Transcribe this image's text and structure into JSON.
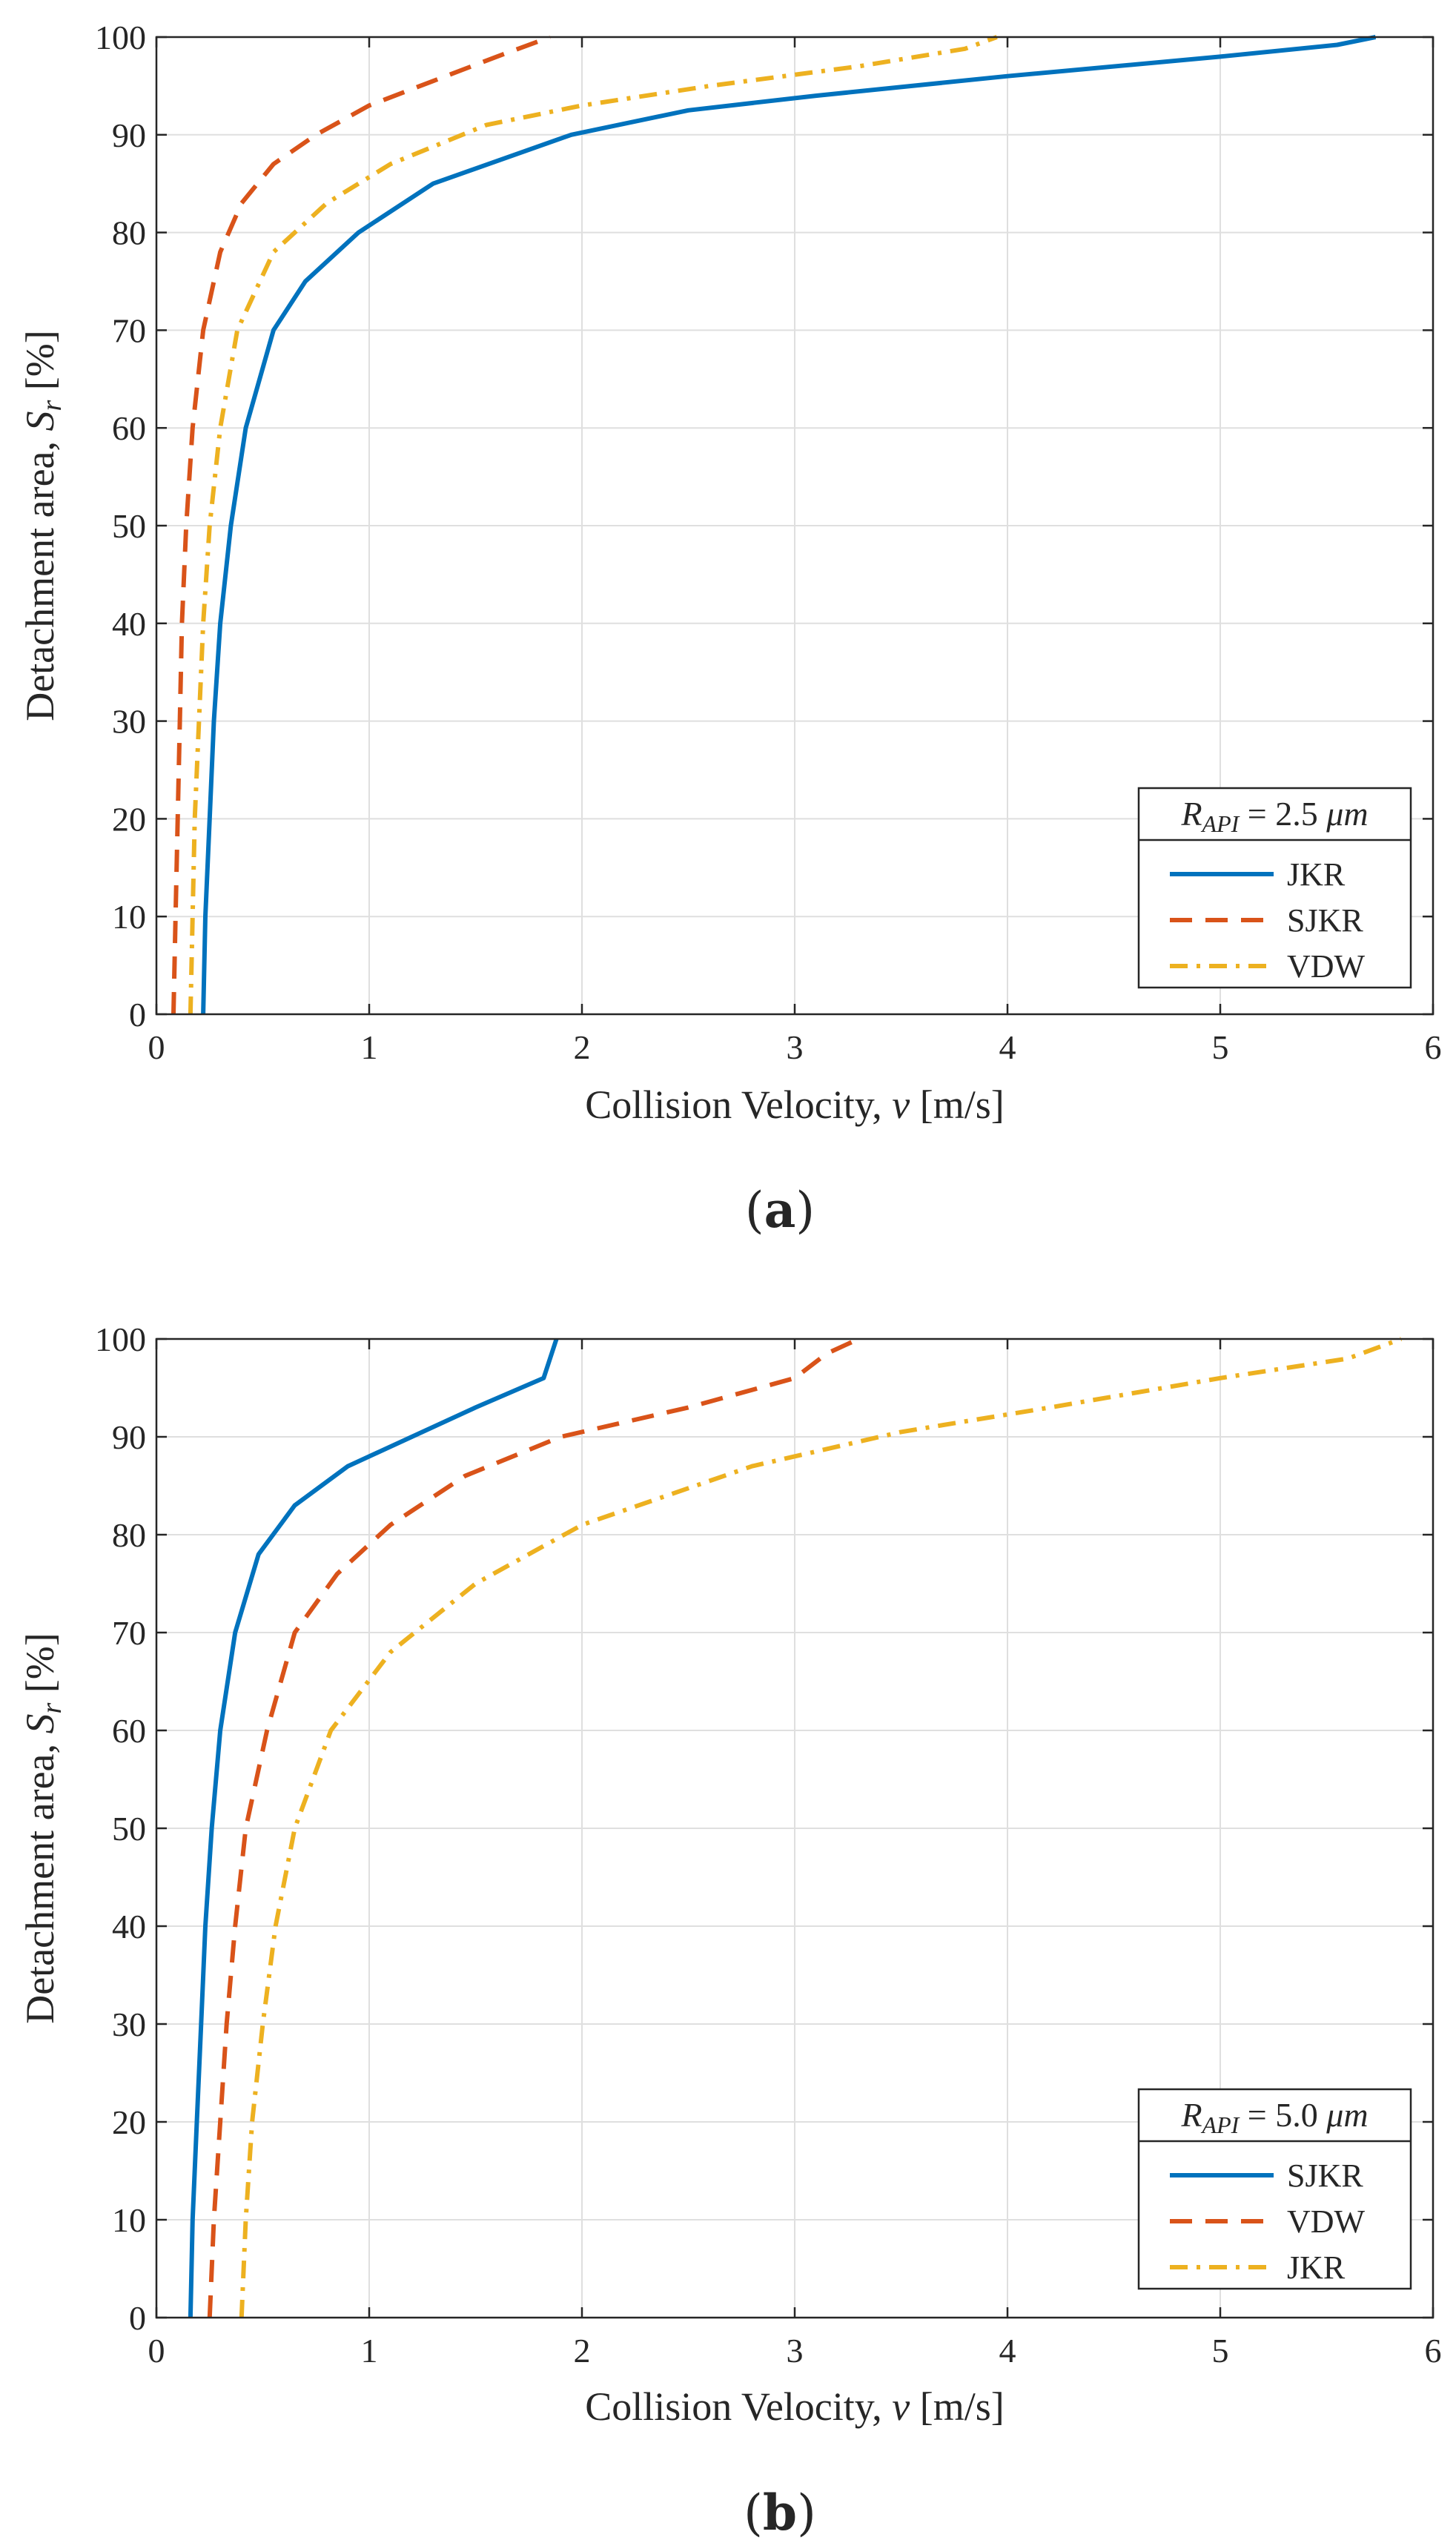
{
  "chart_data": [
    {
      "type": "line",
      "panel_label": "a",
      "xlabel_text": "Collision Velocity, ",
      "xlabel_symbol": "v",
      "xlabel_unit": " [m/s]",
      "ylabel_text": "Detachment area, ",
      "ylabel_symbol": "S",
      "ylabel_subscript": "r",
      "ylabel_unit": " [%]",
      "xlim": [
        0,
        6
      ],
      "ylim": [
        0,
        100
      ],
      "xticks": [
        0,
        1,
        2,
        3,
        4,
        5,
        6
      ],
      "yticks": [
        0,
        10,
        20,
        30,
        40,
        50,
        60,
        70,
        80,
        90,
        100
      ],
      "grid": true,
      "legend_placement": "bottom-right",
      "legend_title_symbol": "R",
      "legend_title_subscript": "API",
      "legend_title_value": " = 2.5 ",
      "legend_title_unit": "μm",
      "series": [
        {
          "name": "JKR",
          "color": "#0072BD",
          "dash": "solid",
          "points": [
            [
              0.22,
              0
            ],
            [
              0.23,
              10
            ],
            [
              0.25,
              20
            ],
            [
              0.27,
              30
            ],
            [
              0.3,
              40
            ],
            [
              0.35,
              50
            ],
            [
              0.42,
              60
            ],
            [
              0.55,
              70
            ],
            [
              0.7,
              75
            ],
            [
              0.95,
              80
            ],
            [
              1.3,
              85
            ],
            [
              1.95,
              90
            ],
            [
              2.5,
              92.5
            ],
            [
              3.1,
              94
            ],
            [
              4.0,
              96
            ],
            [
              5.0,
              98
            ],
            [
              5.55,
              99.2
            ],
            [
              5.73,
              100
            ]
          ]
        },
        {
          "name": "SJKR",
          "color": "#D95319",
          "dash": "dashed",
          "points": [
            [
              0.08,
              0
            ],
            [
              0.09,
              10
            ],
            [
              0.1,
              20
            ],
            [
              0.11,
              30
            ],
            [
              0.12,
              40
            ],
            [
              0.14,
              50
            ],
            [
              0.17,
              60
            ],
            [
              0.22,
              70
            ],
            [
              0.3,
              78
            ],
            [
              0.4,
              83
            ],
            [
              0.55,
              87
            ],
            [
              0.75,
              90
            ],
            [
              1.0,
              93
            ],
            [
              1.3,
              95.5
            ],
            [
              1.6,
              98
            ],
            [
              1.85,
              100
            ]
          ]
        },
        {
          "name": "VDW",
          "color": "#EDB120",
          "dash": "dashdot",
          "points": [
            [
              0.16,
              0
            ],
            [
              0.17,
              10
            ],
            [
              0.18,
              20
            ],
            [
              0.2,
              30
            ],
            [
              0.22,
              40
            ],
            [
              0.25,
              50
            ],
            [
              0.3,
              60
            ],
            [
              0.38,
              70
            ],
            [
              0.55,
              78
            ],
            [
              0.8,
              83
            ],
            [
              1.1,
              87
            ],
            [
              1.55,
              91
            ],
            [
              2.0,
              93
            ],
            [
              2.6,
              95
            ],
            [
              3.3,
              97
            ],
            [
              3.8,
              98.8
            ],
            [
              3.95,
              100
            ]
          ]
        }
      ]
    },
    {
      "type": "line",
      "panel_label": "b",
      "xlabel_text": "Collision Velocity, ",
      "xlabel_symbol": "v",
      "xlabel_unit": " [m/s]",
      "ylabel_text": "Detachment area, ",
      "ylabel_symbol": "S",
      "ylabel_subscript": "r",
      "ylabel_unit": " [%]",
      "xlim": [
        0,
        6
      ],
      "ylim": [
        0,
        100
      ],
      "xticks": [
        0,
        1,
        2,
        3,
        4,
        5,
        6
      ],
      "yticks": [
        0,
        10,
        20,
        30,
        40,
        50,
        60,
        70,
        80,
        90,
        100
      ],
      "grid": true,
      "legend_placement": "bottom-right",
      "legend_title_symbol": "R",
      "legend_title_subscript": "API",
      "legend_title_value": " = 5.0 ",
      "legend_title_unit": "μm",
      "series": [
        {
          "name": "SJKR",
          "color": "#0072BD",
          "dash": "solid",
          "points": [
            [
              0.16,
              0
            ],
            [
              0.17,
              10
            ],
            [
              0.19,
              20
            ],
            [
              0.21,
              30
            ],
            [
              0.23,
              40
            ],
            [
              0.26,
              50
            ],
            [
              0.3,
              60
            ],
            [
              0.37,
              70
            ],
            [
              0.48,
              78
            ],
            [
              0.65,
              83
            ],
            [
              0.9,
              87
            ],
            [
              1.2,
              90
            ],
            [
              1.5,
              93
            ],
            [
              1.82,
              96
            ],
            [
              1.88,
              100
            ]
          ]
        },
        {
          "name": "VDW",
          "color": "#D95319",
          "dash": "dashed",
          "points": [
            [
              0.25,
              0
            ],
            [
              0.27,
              10
            ],
            [
              0.3,
              20
            ],
            [
              0.33,
              30
            ],
            [
              0.37,
              40
            ],
            [
              0.42,
              50
            ],
            [
              0.52,
              60
            ],
            [
              0.65,
              70
            ],
            [
              0.85,
              76
            ],
            [
              1.1,
              81
            ],
            [
              1.45,
              86
            ],
            [
              1.9,
              90
            ],
            [
              2.5,
              93
            ],
            [
              3.0,
              96
            ],
            [
              3.15,
              98.5
            ],
            [
              3.3,
              100
            ]
          ]
        },
        {
          "name": "JKR",
          "color": "#EDB120",
          "dash": "dashdot",
          "points": [
            [
              0.4,
              0
            ],
            [
              0.42,
              10
            ],
            [
              0.45,
              20
            ],
            [
              0.5,
              30
            ],
            [
              0.56,
              40
            ],
            [
              0.65,
              50
            ],
            [
              0.82,
              60
            ],
            [
              1.1,
              68
            ],
            [
              1.5,
              75
            ],
            [
              2.0,
              81
            ],
            [
              2.8,
              87
            ],
            [
              3.5,
              90.5
            ],
            [
              4.2,
              93
            ],
            [
              5.0,
              96
            ],
            [
              5.6,
              98
            ],
            [
              5.85,
              100
            ]
          ]
        }
      ]
    }
  ]
}
